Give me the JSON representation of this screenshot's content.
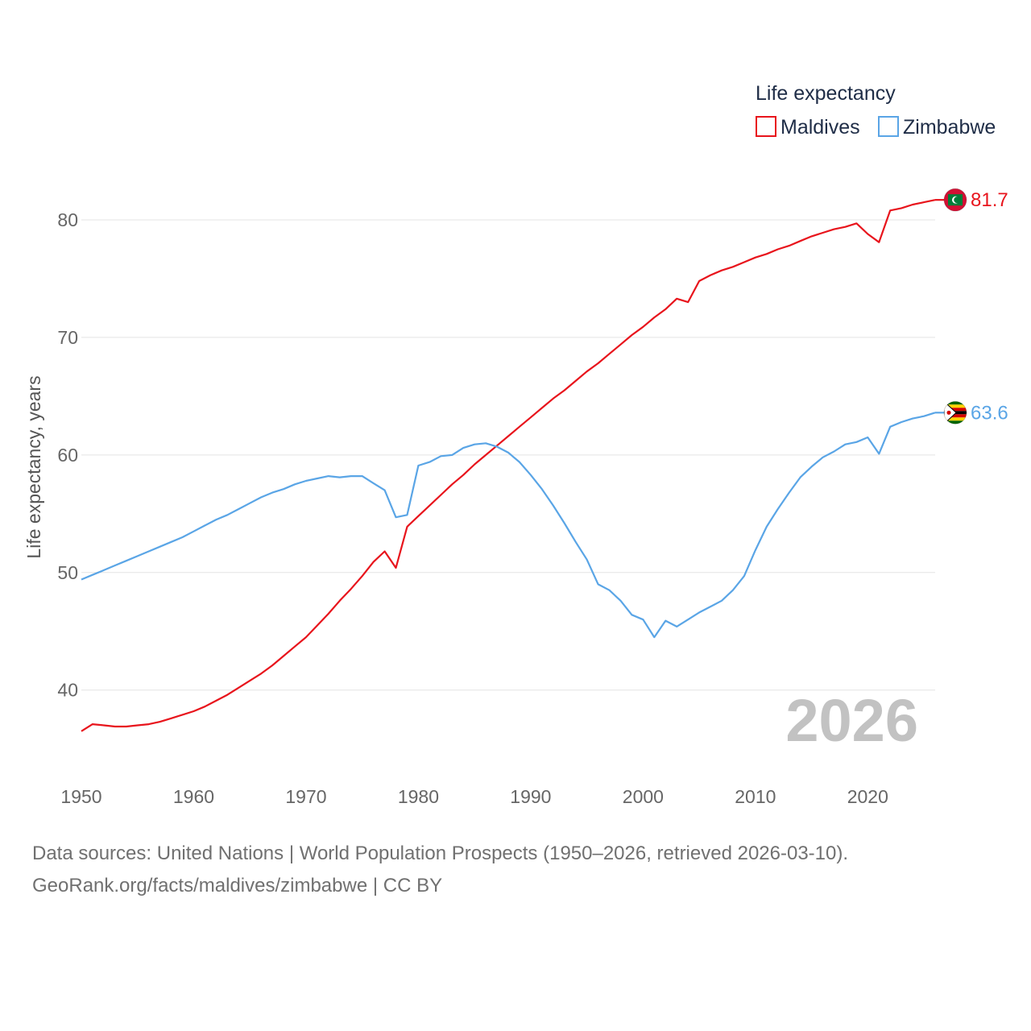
{
  "chart_data": {
    "type": "line",
    "title": "",
    "legend_title": "Life expectancy",
    "xlabel": "",
    "ylabel": "Life expectancy, years",
    "xlim": [
      1950,
      2026
    ],
    "ylim": [
      34.5,
      85
    ],
    "x_ticks": [
      1950,
      1960,
      1970,
      1980,
      1990,
      2000,
      2010,
      2020
    ],
    "y_ticks": [
      40,
      50,
      60,
      70,
      80
    ],
    "grid": true,
    "legend_position": "top-right",
    "current_year": "2026",
    "x": [
      1950,
      1951,
      1952,
      1953,
      1954,
      1955,
      1956,
      1957,
      1958,
      1959,
      1960,
      1961,
      1962,
      1963,
      1964,
      1965,
      1966,
      1967,
      1968,
      1969,
      1970,
      1971,
      1972,
      1973,
      1974,
      1975,
      1976,
      1977,
      1978,
      1979,
      1980,
      1981,
      1982,
      1983,
      1984,
      1985,
      1986,
      1987,
      1988,
      1989,
      1990,
      1991,
      1992,
      1993,
      1994,
      1995,
      1996,
      1997,
      1998,
      1999,
      2000,
      2001,
      2002,
      2003,
      2004,
      2005,
      2006,
      2007,
      2008,
      2009,
      2010,
      2011,
      2012,
      2013,
      2014,
      2015,
      2016,
      2017,
      2018,
      2019,
      2020,
      2021,
      2022,
      2023,
      2024,
      2025,
      2026
    ],
    "series": [
      {
        "name": "Maldives",
        "color": "#e8141c",
        "end_label": "81.7",
        "flag": "maldives-flag",
        "values": [
          36.5,
          37.1,
          37.0,
          36.9,
          36.9,
          37.0,
          37.1,
          37.3,
          37.6,
          37.9,
          38.2,
          38.6,
          39.1,
          39.6,
          40.2,
          40.8,
          41.4,
          42.1,
          42.9,
          43.7,
          44.5,
          45.5,
          46.5,
          47.6,
          48.6,
          49.7,
          50.9,
          51.8,
          50.4,
          53.9,
          54.8,
          55.7,
          56.6,
          57.5,
          58.3,
          59.2,
          60.0,
          60.8,
          61.6,
          62.4,
          63.2,
          64.0,
          64.8,
          65.5,
          66.3,
          67.1,
          67.8,
          68.6,
          69.4,
          70.2,
          70.9,
          71.7,
          72.4,
          73.3,
          73.0,
          74.8,
          75.3,
          75.7,
          76.0,
          76.4,
          76.8,
          77.1,
          77.5,
          77.8,
          78.2,
          78.6,
          78.9,
          79.2,
          79.4,
          79.7,
          78.8,
          78.1,
          80.8,
          81.0,
          81.3,
          81.5,
          81.7
        ]
      },
      {
        "name": "Zimbabwe",
        "color": "#5aa5e6",
        "end_label": "63.6",
        "flag": "zimbabwe-flag",
        "values": [
          49.4,
          49.8,
          50.2,
          50.6,
          51.0,
          51.4,
          51.8,
          52.2,
          52.6,
          53.0,
          53.5,
          54.0,
          54.5,
          54.9,
          55.4,
          55.9,
          56.4,
          56.8,
          57.1,
          57.5,
          57.8,
          58.0,
          58.2,
          58.1,
          58.2,
          58.2,
          57.6,
          57.0,
          54.7,
          54.9,
          59.1,
          59.4,
          59.9,
          60.0,
          60.6,
          60.9,
          61.0,
          60.7,
          60.2,
          59.4,
          58.3,
          57.1,
          55.7,
          54.2,
          52.6,
          51.1,
          49.0,
          48.5,
          47.6,
          46.4,
          46.0,
          44.5,
          45.9,
          45.4,
          46.0,
          46.6,
          47.1,
          47.6,
          48.5,
          49.7,
          51.9,
          53.9,
          55.4,
          56.8,
          58.1,
          59.0,
          59.8,
          60.3,
          60.9,
          61.1,
          61.5,
          60.1,
          62.4,
          62.8,
          63.1,
          63.3,
          63.6
        ]
      }
    ]
  },
  "source": {
    "line1": "Data sources: United Nations | World Population Prospects (1950–2026, retrieved 2026-03-10).",
    "line2": "GeoRank.org/facts/maldives/zimbabwe | CC BY"
  }
}
